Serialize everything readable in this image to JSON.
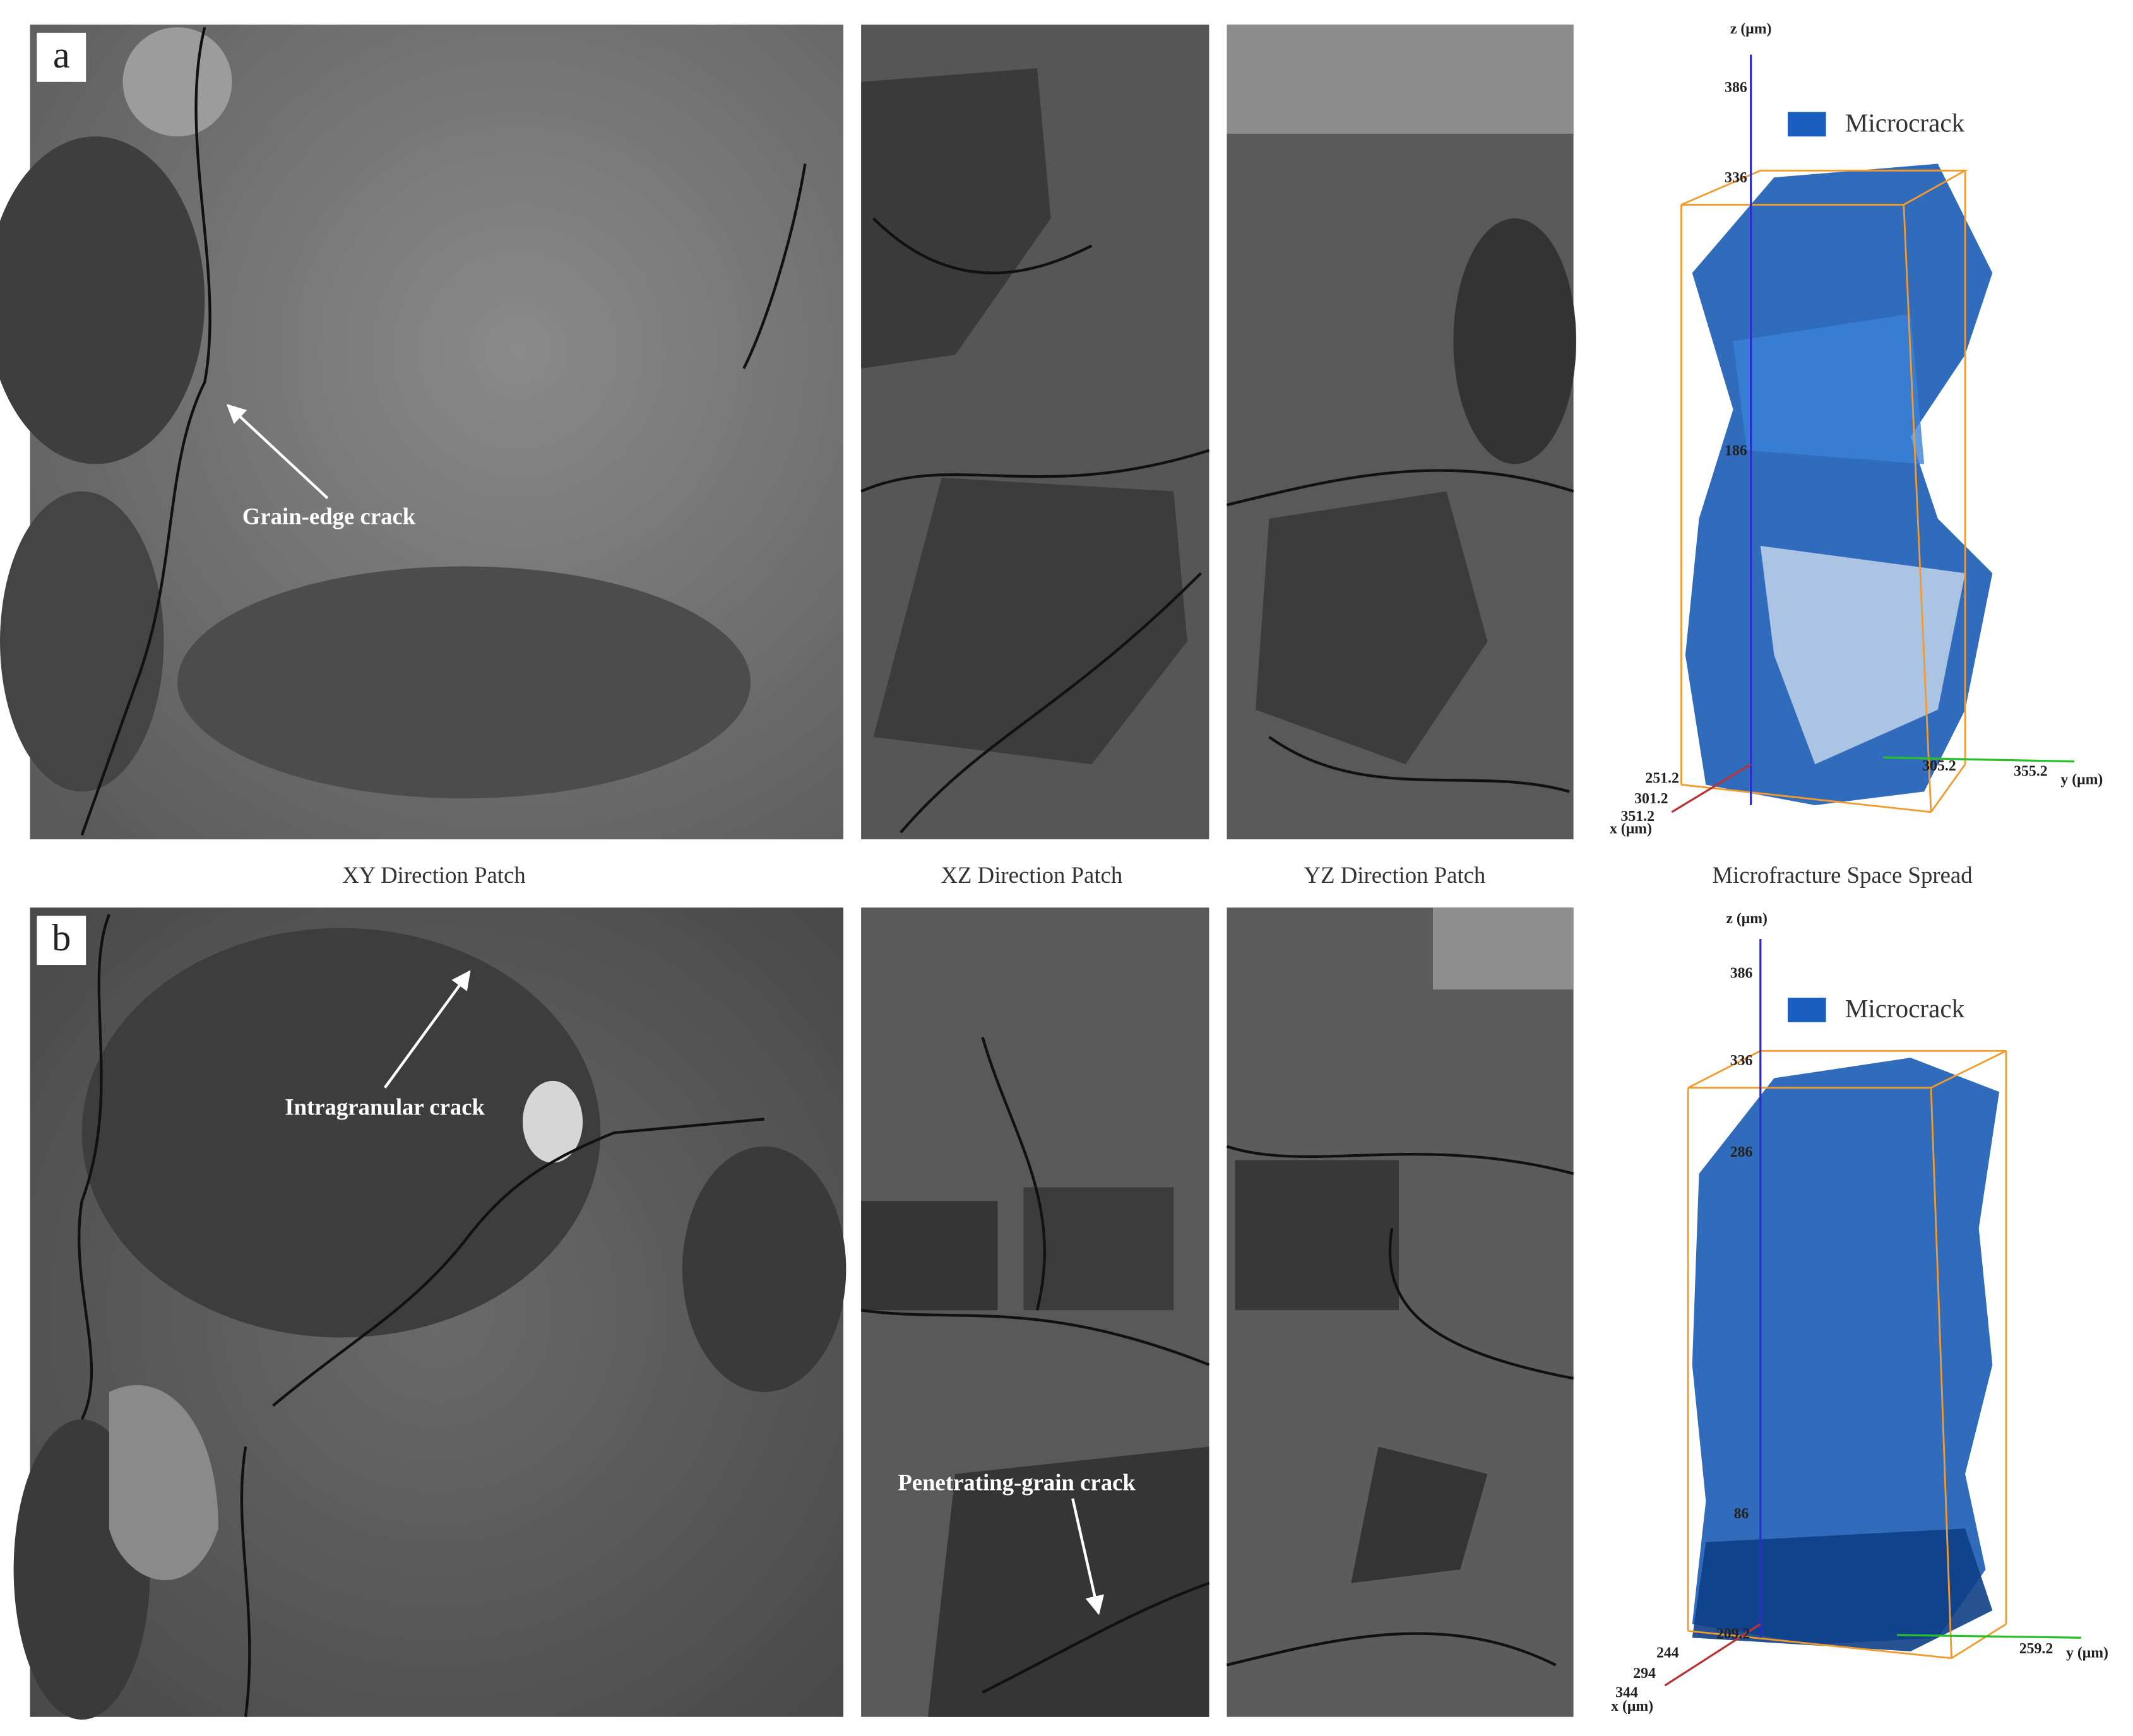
{
  "panels": [
    {
      "label": "a",
      "annotations": [
        "Grain-edge crack"
      ],
      "plot": {
        "z_axis_label": "z (μm)",
        "z_ticks": [
          "386",
          "336",
          "186"
        ],
        "legend": "Microcrack",
        "y_axis_label": "y (μm)",
        "y_ticks": [
          "305.2",
          "355.2"
        ],
        "x_axis_label": "x (μm)",
        "x_ticks": [
          "251.2",
          "301.2",
          "351.2"
        ]
      }
    },
    {
      "label": "b",
      "annotations": [
        "Intragranular crack",
        "Penetrating-grain crack"
      ],
      "plot": {
        "z_axis_label": "z (μm)",
        "z_ticks": [
          "386",
          "336",
          "286",
          "86"
        ],
        "legend": "Microcrack",
        "y_axis_label": "y (μm)",
        "y_ticks": [
          "209.2",
          "259.2"
        ],
        "x_axis_label": "x (μm)",
        "x_ticks": [
          "244",
          "294",
          "344"
        ]
      }
    }
  ],
  "captions": [
    "XY Direction Patch",
    "XZ Direction Patch",
    "YZ Direction Patch",
    "Microfracture Space Spread"
  ]
}
